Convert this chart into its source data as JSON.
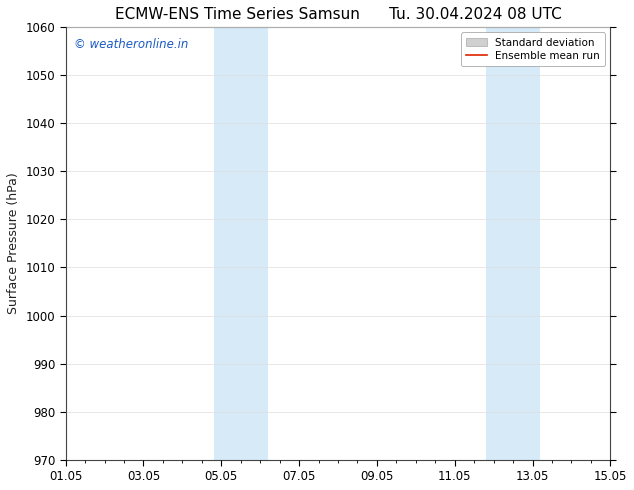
{
  "title_left": "ECMW-ENS Time Series Samsun",
  "title_right": "Tu. 30.04.2024 08 UTC",
  "ylabel": "Surface Pressure (hPa)",
  "xlabel": "",
  "ylim": [
    970,
    1060
  ],
  "yticks": [
    970,
    980,
    990,
    1000,
    1010,
    1020,
    1030,
    1040,
    1050,
    1060
  ],
  "xtick_labels": [
    "01.05",
    "03.05",
    "05.05",
    "07.05",
    "09.05",
    "11.05",
    "13.05",
    "15.05"
  ],
  "xlim_start": 0.0,
  "xlim_end": 14.0,
  "xtick_positions": [
    0,
    2,
    4,
    6,
    8,
    10,
    12,
    14
  ],
  "shaded_bands": [
    {
      "x_start": 3.8,
      "x_end": 5.2
    },
    {
      "x_start": 10.8,
      "x_end": 12.2
    }
  ],
  "shade_color": "#d6eaf8",
  "shade_alpha": 1.0,
  "background_color": "#ffffff",
  "grid_color": "#dddddd",
  "title_fontsize": 11,
  "tick_fontsize": 8.5,
  "ylabel_fontsize": 9,
  "watermark_text": "© weatheronline.in",
  "watermark_color": "#1a5bc4",
  "watermark_fontsize": 8.5,
  "legend_items": [
    {
      "label": "Standard deviation",
      "color": "#d0d0d0",
      "type": "patch"
    },
    {
      "label": "Ensemble mean run",
      "color": "#dd2200",
      "type": "line"
    }
  ]
}
